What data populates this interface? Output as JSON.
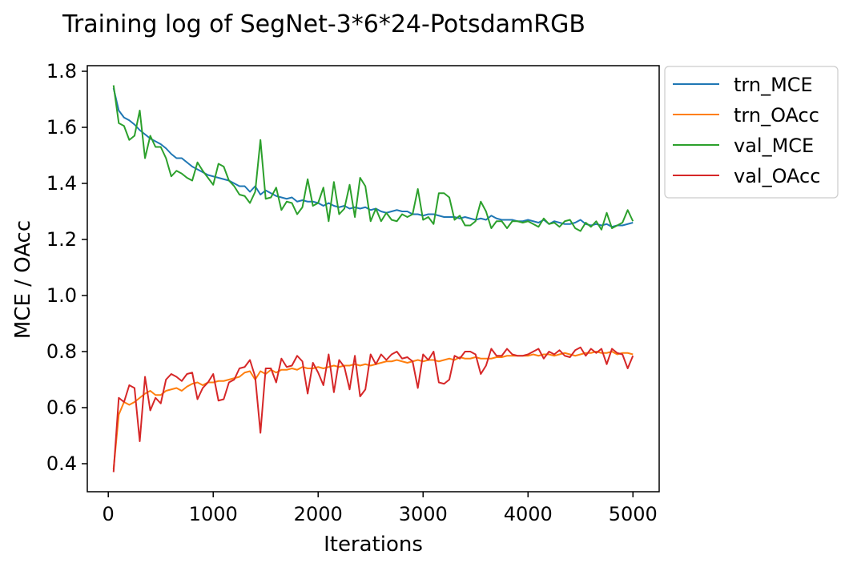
{
  "chart_data": {
    "type": "line",
    "title": "Training log of SegNet-3*6*24-PotsdamRGB",
    "xlabel": "Iterations",
    "ylabel": "MCE / OAcc",
    "xlim": [
      -200,
      5250
    ],
    "ylim": [
      0.3,
      1.82
    ],
    "xticks": [
      0,
      1000,
      2000,
      3000,
      4000,
      5000
    ],
    "yticks": [
      0.4,
      0.6,
      0.8,
      1.0,
      1.2,
      1.4,
      1.6,
      1.8
    ],
    "xtick_labels": [
      "0",
      "1000",
      "2000",
      "3000",
      "4000",
      "5000"
    ],
    "ytick_labels": [
      "0.4",
      "0.6",
      "0.8",
      "1.0",
      "1.2",
      "1.4",
      "1.6",
      "1.8"
    ],
    "grid": false,
    "legend_position": "outside upper right",
    "x": [
      50,
      100,
      150,
      200,
      250,
      300,
      350,
      400,
      450,
      500,
      550,
      600,
      650,
      700,
      750,
      800,
      850,
      900,
      950,
      1000,
      1050,
      1100,
      1150,
      1200,
      1250,
      1300,
      1350,
      1400,
      1450,
      1500,
      1550,
      1600,
      1650,
      1700,
      1750,
      1800,
      1850,
      1900,
      1950,
      2000,
      2050,
      2100,
      2150,
      2200,
      2250,
      2300,
      2350,
      2400,
      2450,
      2500,
      2550,
      2600,
      2650,
      2700,
      2750,
      2800,
      2850,
      2900,
      2950,
      3000,
      3050,
      3100,
      3150,
      3200,
      3250,
      3300,
      3350,
      3400,
      3450,
      3500,
      3550,
      3600,
      3650,
      3700,
      3750,
      3800,
      3850,
      3900,
      3950,
      4000,
      4050,
      4100,
      4150,
      4200,
      4250,
      4300,
      4350,
      4400,
      4450,
      4500,
      4550,
      4600,
      4650,
      4700,
      4750,
      4800,
      4850,
      4900,
      4950,
      5000
    ],
    "series": [
      {
        "name": "trn_MCE",
        "color": "#1f77b4",
        "values": [
          1.74,
          1.66,
          1.635,
          1.625,
          1.61,
          1.59,
          1.575,
          1.56,
          1.55,
          1.54,
          1.525,
          1.505,
          1.49,
          1.49,
          1.475,
          1.46,
          1.45,
          1.44,
          1.43,
          1.425,
          1.42,
          1.415,
          1.41,
          1.4,
          1.39,
          1.39,
          1.37,
          1.39,
          1.36,
          1.375,
          1.365,
          1.355,
          1.35,
          1.345,
          1.35,
          1.335,
          1.34,
          1.335,
          1.335,
          1.33,
          1.32,
          1.33,
          1.32,
          1.315,
          1.32,
          1.31,
          1.315,
          1.31,
          1.315,
          1.305,
          1.31,
          1.3,
          1.295,
          1.3,
          1.305,
          1.3,
          1.3,
          1.29,
          1.29,
          1.285,
          1.29,
          1.29,
          1.285,
          1.28,
          1.28,
          1.28,
          1.275,
          1.28,
          1.275,
          1.27,
          1.275,
          1.27,
          1.285,
          1.275,
          1.27,
          1.27,
          1.27,
          1.265,
          1.265,
          1.27,
          1.265,
          1.26,
          1.27,
          1.255,
          1.265,
          1.26,
          1.255,
          1.255,
          1.26,
          1.27,
          1.255,
          1.25,
          1.255,
          1.25,
          1.255,
          1.245,
          1.25,
          1.25,
          1.255,
          1.26
        ]
      },
      {
        "name": "trn_OAcc",
        "color": "#ff7f0e",
        "values": [
          0.38,
          0.575,
          0.62,
          0.61,
          0.62,
          0.635,
          0.65,
          0.66,
          0.645,
          0.645,
          0.66,
          0.665,
          0.67,
          0.66,
          0.675,
          0.685,
          0.69,
          0.68,
          0.69,
          0.69,
          0.695,
          0.695,
          0.7,
          0.705,
          0.71,
          0.725,
          0.73,
          0.7,
          0.73,
          0.72,
          0.735,
          0.725,
          0.735,
          0.735,
          0.74,
          0.735,
          0.745,
          0.74,
          0.74,
          0.745,
          0.74,
          0.745,
          0.75,
          0.745,
          0.75,
          0.75,
          0.755,
          0.75,
          0.755,
          0.75,
          0.755,
          0.76,
          0.765,
          0.765,
          0.77,
          0.765,
          0.76,
          0.765,
          0.77,
          0.765,
          0.77,
          0.77,
          0.765,
          0.77,
          0.775,
          0.77,
          0.78,
          0.775,
          0.775,
          0.78,
          0.775,
          0.775,
          0.775,
          0.78,
          0.78,
          0.785,
          0.785,
          0.785,
          0.785,
          0.785,
          0.79,
          0.785,
          0.79,
          0.79,
          0.785,
          0.79,
          0.795,
          0.79,
          0.785,
          0.79,
          0.795,
          0.795,
          0.8,
          0.795,
          0.795,
          0.8,
          0.79,
          0.795,
          0.795,
          0.79
        ]
      },
      {
        "name": "val_MCE",
        "color": "#2ca02c",
        "values": [
          1.75,
          1.615,
          1.605,
          1.555,
          1.57,
          1.66,
          1.49,
          1.57,
          1.53,
          1.53,
          1.49,
          1.425,
          1.445,
          1.435,
          1.42,
          1.41,
          1.475,
          1.445,
          1.42,
          1.395,
          1.47,
          1.46,
          1.41,
          1.39,
          1.36,
          1.355,
          1.33,
          1.37,
          1.555,
          1.345,
          1.35,
          1.385,
          1.305,
          1.335,
          1.33,
          1.29,
          1.315,
          1.415,
          1.32,
          1.33,
          1.385,
          1.265,
          1.405,
          1.29,
          1.31,
          1.395,
          1.28,
          1.42,
          1.39,
          1.265,
          1.31,
          1.265,
          1.295,
          1.27,
          1.265,
          1.29,
          1.28,
          1.29,
          1.38,
          1.27,
          1.28,
          1.255,
          1.365,
          1.365,
          1.35,
          1.27,
          1.285,
          1.25,
          1.25,
          1.265,
          1.335,
          1.3,
          1.24,
          1.265,
          1.265,
          1.24,
          1.265,
          1.265,
          1.26,
          1.265,
          1.255,
          1.245,
          1.275,
          1.255,
          1.26,
          1.245,
          1.265,
          1.27,
          1.24,
          1.23,
          1.26,
          1.245,
          1.265,
          1.235,
          1.295,
          1.24,
          1.25,
          1.26,
          1.305,
          1.265
        ]
      },
      {
        "name": "val_OAcc",
        "color": "#d62728",
        "values": [
          0.37,
          0.635,
          0.62,
          0.68,
          0.67,
          0.48,
          0.71,
          0.59,
          0.635,
          0.615,
          0.7,
          0.72,
          0.71,
          0.695,
          0.72,
          0.725,
          0.63,
          0.67,
          0.69,
          0.72,
          0.625,
          0.63,
          0.69,
          0.7,
          0.74,
          0.745,
          0.77,
          0.71,
          0.51,
          0.74,
          0.74,
          0.69,
          0.775,
          0.745,
          0.75,
          0.785,
          0.765,
          0.65,
          0.76,
          0.725,
          0.68,
          0.79,
          0.655,
          0.77,
          0.745,
          0.665,
          0.785,
          0.64,
          0.665,
          0.79,
          0.755,
          0.79,
          0.77,
          0.79,
          0.8,
          0.775,
          0.78,
          0.765,
          0.67,
          0.79,
          0.77,
          0.8,
          0.69,
          0.685,
          0.7,
          0.785,
          0.775,
          0.8,
          0.8,
          0.79,
          0.72,
          0.75,
          0.81,
          0.785,
          0.785,
          0.81,
          0.79,
          0.785,
          0.785,
          0.79,
          0.8,
          0.81,
          0.775,
          0.8,
          0.79,
          0.805,
          0.785,
          0.78,
          0.805,
          0.815,
          0.785,
          0.81,
          0.795,
          0.81,
          0.755,
          0.81,
          0.795,
          0.79,
          0.74,
          0.785
        ]
      }
    ]
  }
}
